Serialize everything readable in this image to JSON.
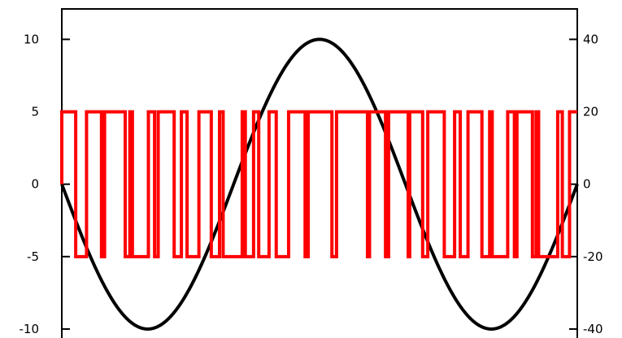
{
  "chart_data": {
    "type": "line",
    "grid": false,
    "legend": "none",
    "x_range": [
      0,
      1
    ],
    "y_left": {
      "ticks": [
        10,
        5,
        0,
        -5,
        -10
      ],
      "tick_labels": [
        "10",
        "5",
        "0",
        "-5",
        "-10"
      ],
      "range": [
        -10.9,
        12.1
      ]
    },
    "y_right": {
      "ticks": [
        40,
        20,
        0,
        -20,
        -40
      ],
      "tick_labels": [
        "40",
        "20",
        "0",
        "-20",
        "-40"
      ],
      "range": [
        -43.6,
        48.4
      ]
    },
    "series": [
      {
        "axis": "left",
        "color": "#000000",
        "shape": "sine",
        "amplitude": 10,
        "cycles": 1.5,
        "phase_start": "zero, descending"
      },
      {
        "axis": "right",
        "color": "#ff0000",
        "shape": "pwm square wave",
        "high": 20,
        "low": -20,
        "edges": [
          0.0,
          0.027,
          0.048,
          0.077,
          0.083,
          0.123,
          0.132,
          0.137,
          0.168,
          0.18,
          0.187,
          0.218,
          0.232,
          0.243,
          0.266,
          0.29,
          0.306,
          0.313,
          0.35,
          0.356,
          0.372,
          0.382,
          0.402,
          0.416,
          0.44,
          0.472,
          0.478,
          0.524,
          0.533,
          0.593,
          0.597,
          0.628,
          0.634,
          0.672,
          0.675,
          0.7,
          0.71,
          0.742,
          0.762,
          0.773,
          0.788,
          0.815,
          0.83,
          0.835,
          0.865,
          0.878,
          0.883,
          0.913,
          0.92,
          0.925,
          0.962,
          0.971,
          0.985,
          1.0
        ]
      }
    ]
  }
}
